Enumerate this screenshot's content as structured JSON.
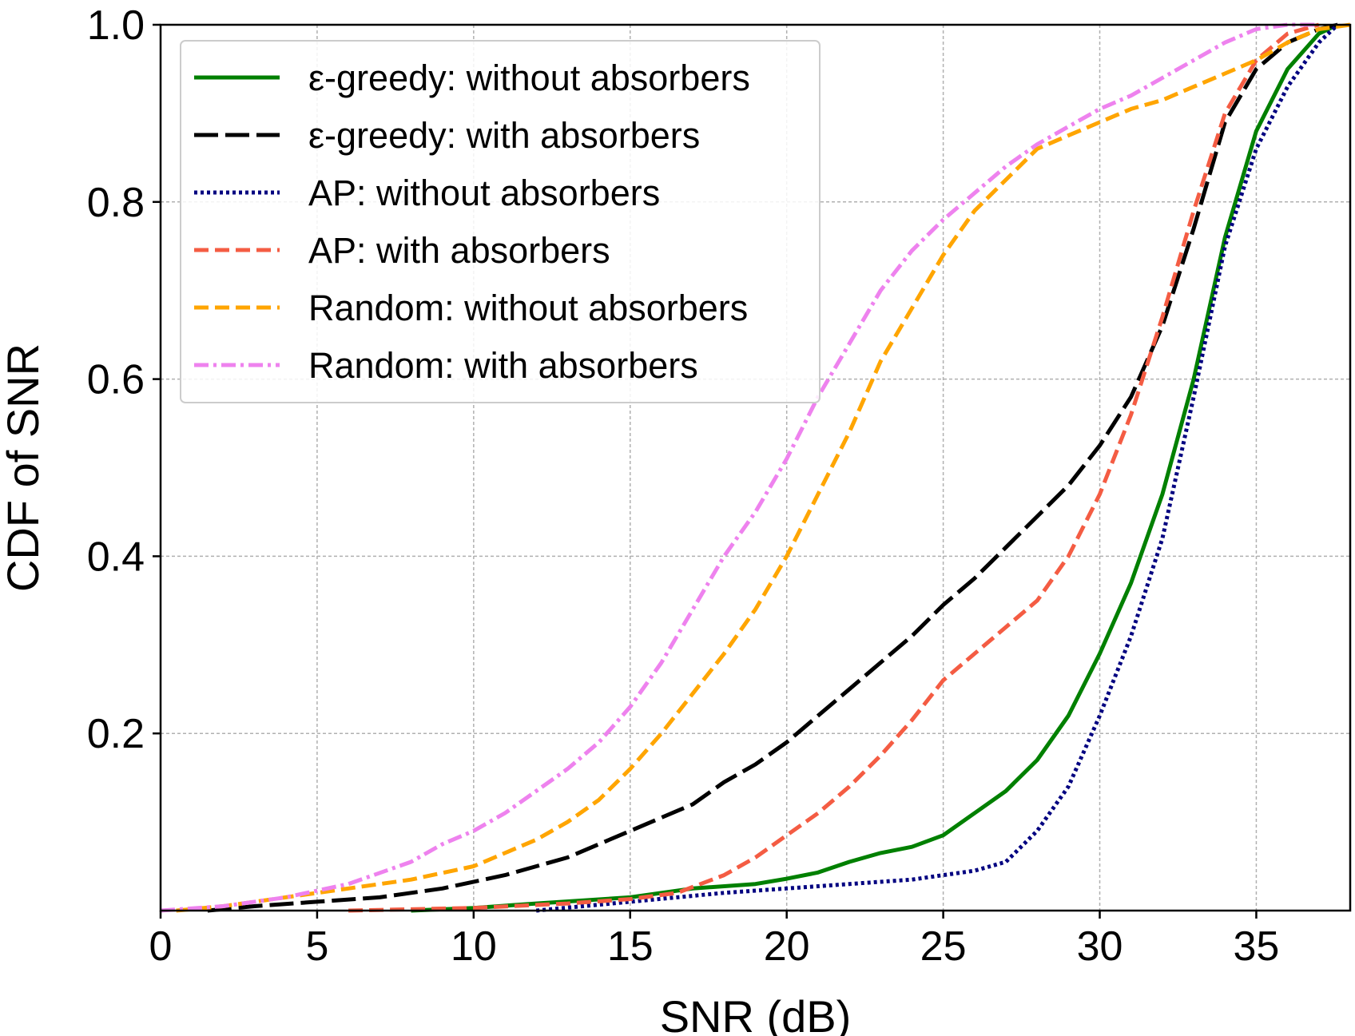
{
  "chart_data": {
    "type": "line",
    "xlabel": "SNR (dB)",
    "ylabel": "CDF of SNR",
    "xlim": [
      0,
      38
    ],
    "ylim": [
      0,
      1.0
    ],
    "xticks": [
      0,
      5,
      10,
      15,
      20,
      25,
      30,
      35
    ],
    "xtick_labels": [
      "0",
      "5",
      "10",
      "15",
      "20",
      "25",
      "30",
      "35"
    ],
    "yticks": [
      0.2,
      0.4,
      0.6,
      0.8,
      1.0
    ],
    "ytick_labels": [
      "0.2",
      "0.4",
      "0.6",
      "0.8",
      "1.0"
    ],
    "grid": true,
    "legend_position": "top-left",
    "series": [
      {
        "name": "ε-greedy: without absorbers",
        "color": "#008000",
        "line_style": "solid",
        "x": [
          8,
          10,
          12,
          15,
          17,
          19,
          20,
          21,
          22,
          23,
          24,
          25,
          26,
          27,
          28,
          29,
          30,
          31,
          32,
          33,
          34,
          35,
          36,
          37,
          37.6
        ],
        "y": [
          0.0,
          0.003,
          0.008,
          0.015,
          0.025,
          0.03,
          0.036,
          0.043,
          0.055,
          0.065,
          0.072,
          0.085,
          0.11,
          0.135,
          0.17,
          0.22,
          0.29,
          0.37,
          0.47,
          0.6,
          0.76,
          0.88,
          0.95,
          0.99,
          1.0
        ]
      },
      {
        "name": "ε-greedy: with absorbers",
        "color": "#000000",
        "line_style": "long-dash",
        "x": [
          1.5,
          3,
          5,
          7,
          9,
          11,
          13,
          15,
          17,
          18,
          19,
          20,
          21,
          22,
          23,
          24,
          25,
          26,
          27,
          28,
          29,
          30,
          31,
          32,
          33,
          34,
          35,
          36,
          37,
          37.6
        ],
        "y": [
          0.0,
          0.005,
          0.01,
          0.015,
          0.025,
          0.04,
          0.06,
          0.09,
          0.12,
          0.145,
          0.165,
          0.19,
          0.22,
          0.25,
          0.28,
          0.31,
          0.345,
          0.375,
          0.41,
          0.445,
          0.48,
          0.525,
          0.58,
          0.66,
          0.77,
          0.89,
          0.95,
          0.98,
          0.995,
          1.0
        ]
      },
      {
        "name": "AP: without absorbers",
        "color": "#000080",
        "line_style": "dotted",
        "x": [
          12,
          15,
          18,
          20,
          22,
          24,
          25,
          26,
          27,
          28,
          29,
          30,
          31,
          32,
          33,
          34,
          35,
          36,
          37,
          37.6
        ],
        "y": [
          0.0,
          0.01,
          0.02,
          0.025,
          0.03,
          0.035,
          0.04,
          0.045,
          0.055,
          0.09,
          0.14,
          0.22,
          0.31,
          0.42,
          0.58,
          0.75,
          0.86,
          0.93,
          0.98,
          1.0
        ]
      },
      {
        "name": "AP: with absorbers",
        "color": "#f45c43",
        "line_style": "dashed",
        "x": [
          6,
          10,
          13,
          15,
          16.5,
          18,
          19,
          20,
          21,
          22,
          23,
          24,
          25,
          26,
          27,
          28,
          29,
          30,
          31,
          32,
          33,
          34,
          35,
          36,
          37
        ],
        "y": [
          0.0,
          0.003,
          0.008,
          0.013,
          0.02,
          0.04,
          0.06,
          0.085,
          0.11,
          0.14,
          0.175,
          0.215,
          0.26,
          0.29,
          0.32,
          0.35,
          0.4,
          0.47,
          0.56,
          0.67,
          0.79,
          0.9,
          0.96,
          0.99,
          1.0
        ]
      },
      {
        "name": "Random: without absorbers",
        "color": "#ffa500",
        "line_style": "dashed",
        "x": [
          0.5,
          2,
          4,
          6,
          8,
          10,
          12,
          13,
          14,
          15,
          16,
          17,
          18,
          19,
          20,
          21,
          22,
          23,
          24,
          25,
          26,
          27,
          28,
          29,
          30,
          31,
          32,
          33,
          34,
          35,
          36,
          37,
          38
        ],
        "y": [
          0.0,
          0.005,
          0.015,
          0.025,
          0.035,
          0.05,
          0.08,
          0.1,
          0.125,
          0.16,
          0.2,
          0.245,
          0.29,
          0.34,
          0.4,
          0.47,
          0.54,
          0.62,
          0.68,
          0.74,
          0.79,
          0.825,
          0.86,
          0.875,
          0.89,
          0.905,
          0.915,
          0.93,
          0.945,
          0.96,
          0.98,
          0.995,
          1.0
        ]
      },
      {
        "name": "Random: with absorbers",
        "color": "#ee82ee",
        "line_style": "dash-dot",
        "x": [
          0,
          2,
          4,
          6,
          8,
          9,
          10,
          11,
          12,
          13,
          14,
          15,
          16,
          17,
          18,
          19,
          20,
          21,
          22,
          23,
          24,
          25,
          26,
          27,
          28,
          29,
          30,
          31,
          32,
          33,
          34,
          35,
          36,
          37
        ],
        "y": [
          0.0,
          0.005,
          0.015,
          0.03,
          0.055,
          0.075,
          0.09,
          0.11,
          0.135,
          0.16,
          0.19,
          0.23,
          0.28,
          0.34,
          0.4,
          0.45,
          0.51,
          0.58,
          0.64,
          0.7,
          0.745,
          0.78,
          0.81,
          0.84,
          0.865,
          0.885,
          0.905,
          0.92,
          0.94,
          0.96,
          0.98,
          0.995,
          1.0,
          1.0
        ]
      }
    ]
  }
}
